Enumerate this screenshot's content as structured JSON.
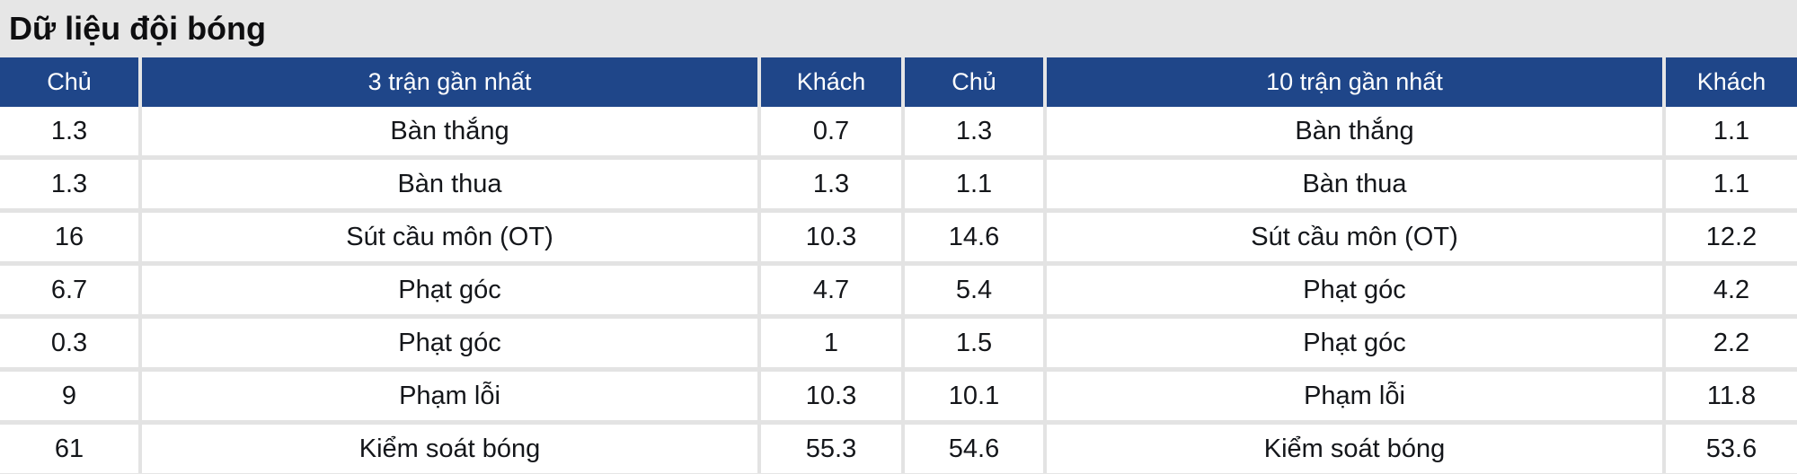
{
  "page": {
    "title": "Dữ liệu đội bóng"
  },
  "colors": {
    "header_bg": "#1f4689",
    "header_text": "#ffffff",
    "page_bg": "#e6e6e6",
    "divider": "#e3e3e3",
    "row_bg": "#ffffff",
    "text": "#14161a"
  },
  "table": {
    "headers": [
      "Chủ",
      "3 trận gần nhất",
      "Khách",
      "Chủ",
      "10 trận gần nhất",
      "Khách"
    ],
    "rows": [
      {
        "home_3": "1.3",
        "stat_3": "Bàn thắng",
        "away_3": "0.7",
        "home_10": "1.3",
        "stat_10": "Bàn thắng",
        "away_10": "1.1"
      },
      {
        "home_3": "1.3",
        "stat_3": "Bàn thua",
        "away_3": "1.3",
        "home_10": "1.1",
        "stat_10": "Bàn thua",
        "away_10": "1.1"
      },
      {
        "home_3": "16",
        "stat_3": "Sút cầu môn (OT)",
        "away_3": "10.3",
        "home_10": "14.6",
        "stat_10": "Sút cầu môn (OT)",
        "away_10": "12.2"
      },
      {
        "home_3": "6.7",
        "stat_3": "Phạt góc",
        "away_3": "4.7",
        "home_10": "5.4",
        "stat_10": "Phạt góc",
        "away_10": "4.2"
      },
      {
        "home_3": "0.3",
        "stat_3": "Phạt góc",
        "away_3": "1",
        "home_10": "1.5",
        "stat_10": "Phạt góc",
        "away_10": "2.2"
      },
      {
        "home_3": "9",
        "stat_3": "Phạm lỗi",
        "away_3": "10.3",
        "home_10": "10.1",
        "stat_10": "Phạm lỗi",
        "away_10": "11.8"
      },
      {
        "home_3": "61",
        "stat_3": "Kiểm soát bóng",
        "away_3": "55.3",
        "home_10": "54.6",
        "stat_10": "Kiểm soát bóng",
        "away_10": "53.6"
      }
    ]
  }
}
